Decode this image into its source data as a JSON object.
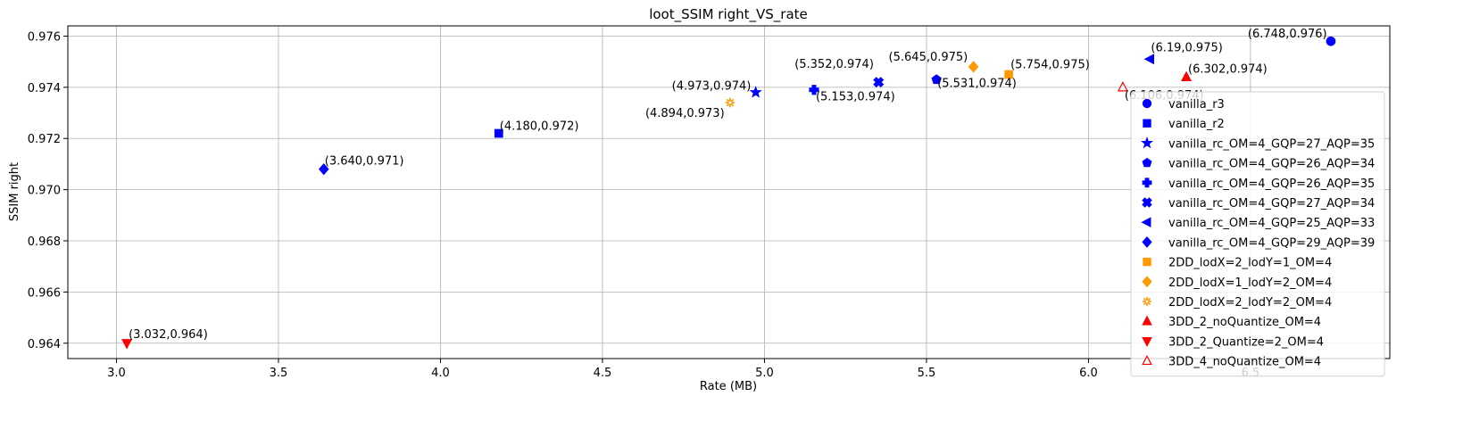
{
  "chart_data": {
    "type": "scatter",
    "title": "loot_SSIM right_VS_rate",
    "xlabel": "Rate (MB)",
    "ylabel": "SSIM right",
    "xlim": [
      2.85,
      6.93
    ],
    "ylim": [
      0.9634,
      0.9764
    ],
    "x_ticks": [
      "3.0",
      "3.5",
      "4.0",
      "4.5",
      "5.0",
      "5.5",
      "6.0",
      "6.5"
    ],
    "y_ticks": [
      "0.964",
      "0.966",
      "0.968",
      "0.970",
      "0.972",
      "0.974",
      "0.976"
    ],
    "grid": true,
    "legend_position": "lower-right",
    "series": [
      {
        "name": "vanilla_r3",
        "marker": "circle",
        "color": "#0000ff",
        "filled": true,
        "points": [
          {
            "x": 6.748,
            "y": 0.9758,
            "label": "(6.748,0.976)"
          }
        ]
      },
      {
        "name": "vanilla_r2",
        "marker": "square",
        "color": "#0000ff",
        "filled": true,
        "points": [
          {
            "x": 4.18,
            "y": 0.9722,
            "label": "(4.180,0.972)"
          }
        ]
      },
      {
        "name": "vanilla_rc_OM=4_GQP=27_AQP=35",
        "marker": "star",
        "color": "#0000ff",
        "filled": true,
        "points": [
          {
            "x": 4.973,
            "y": 0.9738,
            "label": "(4.973,0.974)"
          }
        ]
      },
      {
        "name": "vanilla_rc_OM=4_GQP=26_AQP=34",
        "marker": "pentagon",
        "color": "#0000ff",
        "filled": true,
        "points": [
          {
            "x": 5.531,
            "y": 0.9743,
            "label": "(5.531,0.974)"
          }
        ]
      },
      {
        "name": "vanilla_rc_OM=4_GQP=26_AQP=35",
        "marker": "plus",
        "color": "#0000ff",
        "filled": true,
        "points": [
          {
            "x": 5.153,
            "y": 0.9739,
            "label": "(5.153,0.974)"
          }
        ]
      },
      {
        "name": "vanilla_rc_OM=4_GQP=27_AQP=34",
        "marker": "x",
        "color": "#0000ff",
        "filled": true,
        "points": [
          {
            "x": 5.352,
            "y": 0.9742,
            "label": "(5.352,0.974)"
          }
        ]
      },
      {
        "name": "vanilla_rc_OM=4_GQP=25_AQP=33",
        "marker": "triangle-left",
        "color": "#0000ff",
        "filled": true,
        "points": [
          {
            "x": 6.19,
            "y": 0.9751,
            "label": "(6.19,0.975)"
          }
        ]
      },
      {
        "name": "vanilla_rc_OM=4_GQP=29_AQP=39",
        "marker": "diamond",
        "color": "#0000ff",
        "filled": true,
        "points": [
          {
            "x": 3.64,
            "y": 0.9708,
            "label": "(3.640,0.971)"
          }
        ]
      },
      {
        "name": "2DD_lodX=2_lodY=1_OM=4",
        "marker": "square",
        "color": "#ff9900",
        "filled": true,
        "points": [
          {
            "x": 5.754,
            "y": 0.9745,
            "label": "(5.754,0.975)"
          }
        ]
      },
      {
        "name": "2DD_lodX=1_lodY=2_OM=4",
        "marker": "diamond",
        "color": "#ff9900",
        "filled": true,
        "points": [
          {
            "x": 5.645,
            "y": 0.9748,
            "label": "(5.645,0.975)"
          }
        ]
      },
      {
        "name": "2DD_lodX=2_lodY=2_OM=4",
        "marker": "sun",
        "color": "#ff9900",
        "filled": true,
        "points": [
          {
            "x": 4.894,
            "y": 0.9734,
            "label": "(4.894,0.973)"
          }
        ]
      },
      {
        "name": "3DD_2_noQuantize_OM=4",
        "marker": "triangle-up",
        "color": "#ff0000",
        "filled": true,
        "points": [
          {
            "x": 6.302,
            "y": 0.9744,
            "label": "(6.302,0.974)"
          }
        ]
      },
      {
        "name": "3DD_2_Quantize=2_OM=4",
        "marker": "triangle-down",
        "color": "#ff0000",
        "filled": true,
        "points": [
          {
            "x": 3.032,
            "y": 0.964,
            "label": "(3.032,0.964)"
          }
        ]
      },
      {
        "name": "3DD_4_noQuantize_OM=4",
        "marker": "triangle-up",
        "color": "#ff0000",
        "filled": false,
        "points": [
          {
            "x": 6.106,
            "y": 0.974,
            "label": "(6.106,0.974)"
          }
        ]
      }
    ]
  }
}
